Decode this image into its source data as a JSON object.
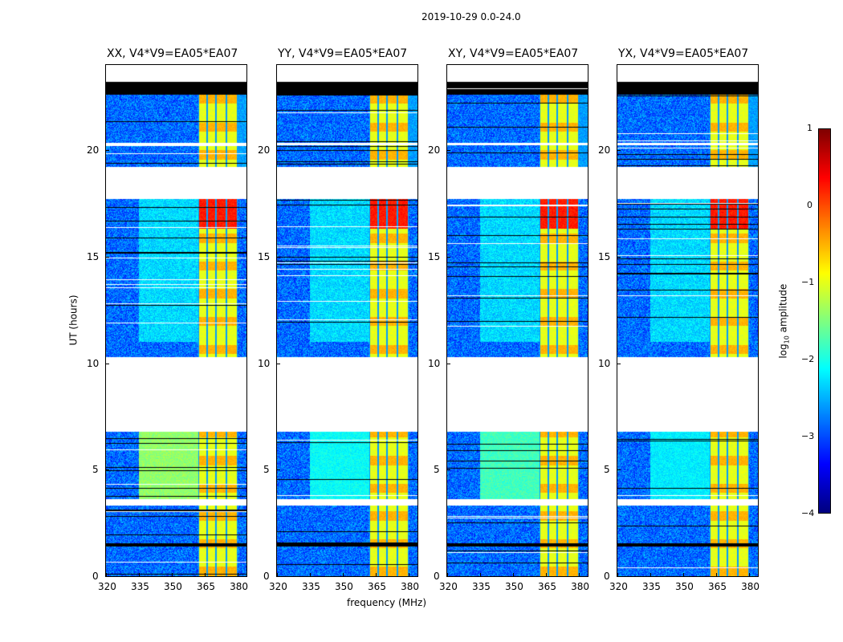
{
  "chart_data": {
    "type": "heatmap",
    "suptitle": "2019-10-29 0.0-24.0",
    "xlabel": "frequency (MHz)",
    "ylabel": "UT (hours)",
    "xlim": [
      320,
      384
    ],
    "ylim": [
      0,
      24
    ],
    "xticks": [
      "320",
      "335",
      "350",
      "365",
      "380"
    ],
    "yticks": [
      "0",
      "5",
      "10",
      "15",
      "20"
    ],
    "panels": [
      {
        "title": "XX, V4*V9=EA05*EA07",
        "broadband_level": -1.4
      },
      {
        "title": "YY, V4*V9=EA05*EA07",
        "broadband_level": -2.1
      },
      {
        "title": "XY, V4*V9=EA05*EA07",
        "broadband_level": -1.8
      },
      {
        "title": "YX, V4*V9=EA05*EA07",
        "broadband_level": -2.2
      }
    ],
    "data_gaps_hours": [
      [
        23.2,
        24
      ],
      [
        17.7,
        19.2
      ],
      [
        6.8,
        10.3
      ],
      [
        3.3,
        3.6
      ]
    ],
    "flagged_band_hours": [
      22.6,
      23.2
    ],
    "colorbar": {
      "label": "log10 amplitude",
      "label_main": "log",
      "label_sub": "10",
      "label_rest": " amplitude",
      "range": [
        -4,
        1
      ],
      "ticks": [
        "1",
        "0",
        "−1",
        "−2",
        "−3",
        "−4"
      ],
      "colormap": "jet"
    }
  }
}
